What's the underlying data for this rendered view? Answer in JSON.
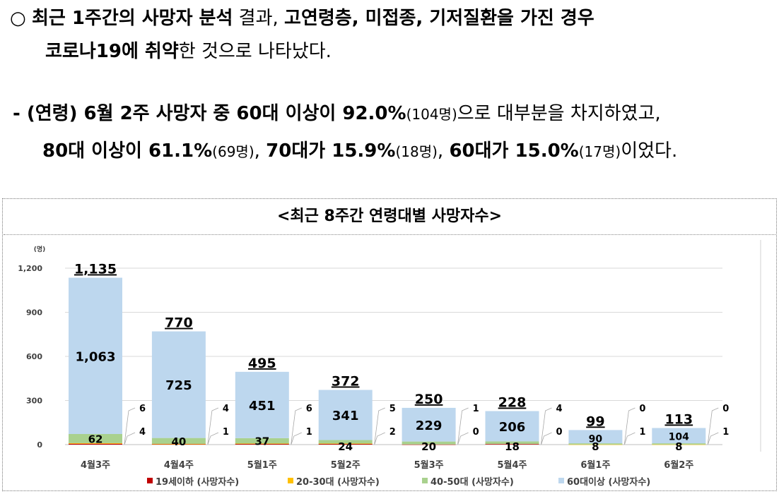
{
  "text": {
    "p1": [
      {
        "t": "○ ",
        "b": false
      },
      {
        "t": "최근 1주간의 사망자 분석",
        "b": true
      },
      {
        "t": " 결과, ",
        "b": false
      },
      {
        "t": "고연령층, 미접종, 기저질환을 가진 경우",
        "b": true
      }
    ],
    "p2": [
      {
        "t": "코로나19에 취약",
        "b": true
      },
      {
        "t": "한 것으로 나타났다.",
        "b": false
      }
    ],
    "p3": [
      {
        "t": "- (연령) 6월 2주 사망자 중 60대 이상이 92.0%",
        "b": true
      },
      {
        "t": "(104명)",
        "b": false,
        "s": true
      },
      {
        "t": "으로 대부분을 차지하였고,",
        "b": false
      }
    ],
    "p4": [
      {
        "t": "80대 이상이 61.1%",
        "b": true
      },
      {
        "t": "(69명)",
        "b": false,
        "s": true
      },
      {
        "t": ", ",
        "b": false
      },
      {
        "t": "70대가 15.9%",
        "b": true
      },
      {
        "t": "(18명)",
        "b": false,
        "s": true
      },
      {
        "t": ", ",
        "b": false
      },
      {
        "t": "60대가 15.0%",
        "b": true
      },
      {
        "t": "(17명)",
        "b": false,
        "s": true
      },
      {
        "t": "이었다.",
        "b": false
      }
    ]
  },
  "chart_data": {
    "type": "bar",
    "stacked": true,
    "title": "<최근 8주간 연령대별 사망자수>",
    "ylabel": "(명)",
    "ylim": [
      0,
      1200
    ],
    "yticks": [
      0,
      300,
      600,
      900,
      1200
    ],
    "ytick_labels": [
      "0",
      "300",
      "600",
      "900",
      "1,200"
    ],
    "grid": true,
    "legend_position": "bottom",
    "categories": [
      "4월3주",
      "4월4주",
      "5월1주",
      "5월2주",
      "5월3주",
      "5월4주",
      "6월1주",
      "6월2주"
    ],
    "totals": [
      1135,
      770,
      495,
      372,
      250,
      228,
      99,
      113
    ],
    "total_labels": [
      "1,135",
      "770",
      "495",
      "372",
      "250",
      "228",
      "99",
      "113"
    ],
    "series": [
      {
        "name": "19세이하 (사망자수)",
        "color": "#c00000",
        "values": [
          6,
          4,
          6,
          5,
          1,
          4,
          0,
          0
        ]
      },
      {
        "name": "20-30대 (사망자수)",
        "color": "#ffc000",
        "values": [
          4,
          1,
          1,
          2,
          0,
          0,
          1,
          1
        ]
      },
      {
        "name": "40-50대 (사망자수)",
        "color": "#a9d18e",
        "values": [
          62,
          40,
          37,
          24,
          20,
          18,
          8,
          8
        ]
      },
      {
        "name": "60대이상 (사망자수)",
        "color": "#bdd7ee",
        "values": [
          1063,
          725,
          451,
          341,
          229,
          206,
          90,
          104
        ]
      }
    ],
    "value_labels": {
      "s40": [
        "62",
        "40",
        "37",
        "24",
        "20",
        "18",
        "8",
        "8"
      ],
      "s60": [
        "1,063",
        "725",
        "451",
        "341",
        "229",
        "206",
        "90",
        "104"
      ]
    }
  }
}
